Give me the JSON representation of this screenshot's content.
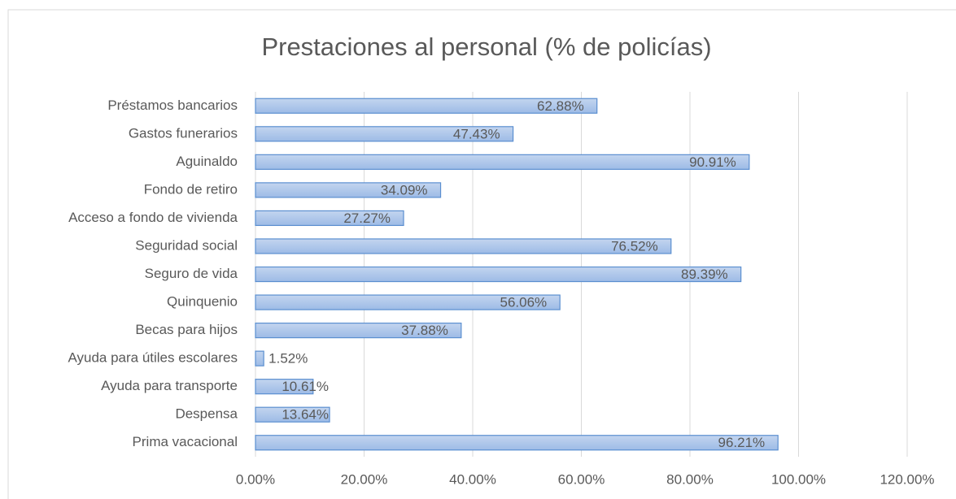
{
  "chart_data": {
    "type": "bar",
    "orientation": "horizontal",
    "title": "Prestaciones al personal (% de policías)",
    "categories": [
      "Préstamos bancarios",
      "Gastos funerarios",
      "Aguinaldo",
      "Fondo de retiro",
      "Acceso a fondo de vivienda",
      "Seguridad social",
      "Seguro de vida",
      "Quinquenio",
      "Becas para hijos",
      "Ayuda para útiles escolares",
      "Ayuda para transporte",
      "Despensa",
      "Prima vacacional"
    ],
    "values": [
      62.88,
      47.43,
      90.91,
      34.09,
      27.27,
      76.52,
      89.39,
      56.06,
      37.88,
      1.52,
      10.61,
      13.64,
      96.21
    ],
    "value_labels": [
      "62.88%",
      "47.43%",
      "90.91%",
      "34.09%",
      "27.27%",
      "76.52%",
      "89.39%",
      "56.06%",
      "37.88%",
      "1.52%",
      "10.61%",
      "13.64%",
      "96.21%"
    ],
    "color": "#a9c4e8",
    "xlim": [
      0,
      120
    ],
    "xticks": [
      {
        "value": 0,
        "label": "0.00%"
      },
      {
        "value": 20,
        "label": "20.00%"
      },
      {
        "value": 40,
        "label": "40.00%"
      },
      {
        "value": 60,
        "label": "60.00%"
      },
      {
        "value": 80,
        "label": "80.00%"
      },
      {
        "value": 100,
        "label": "100.00%"
      },
      {
        "value": 120,
        "label": "120.00%"
      }
    ],
    "grid": true
  }
}
